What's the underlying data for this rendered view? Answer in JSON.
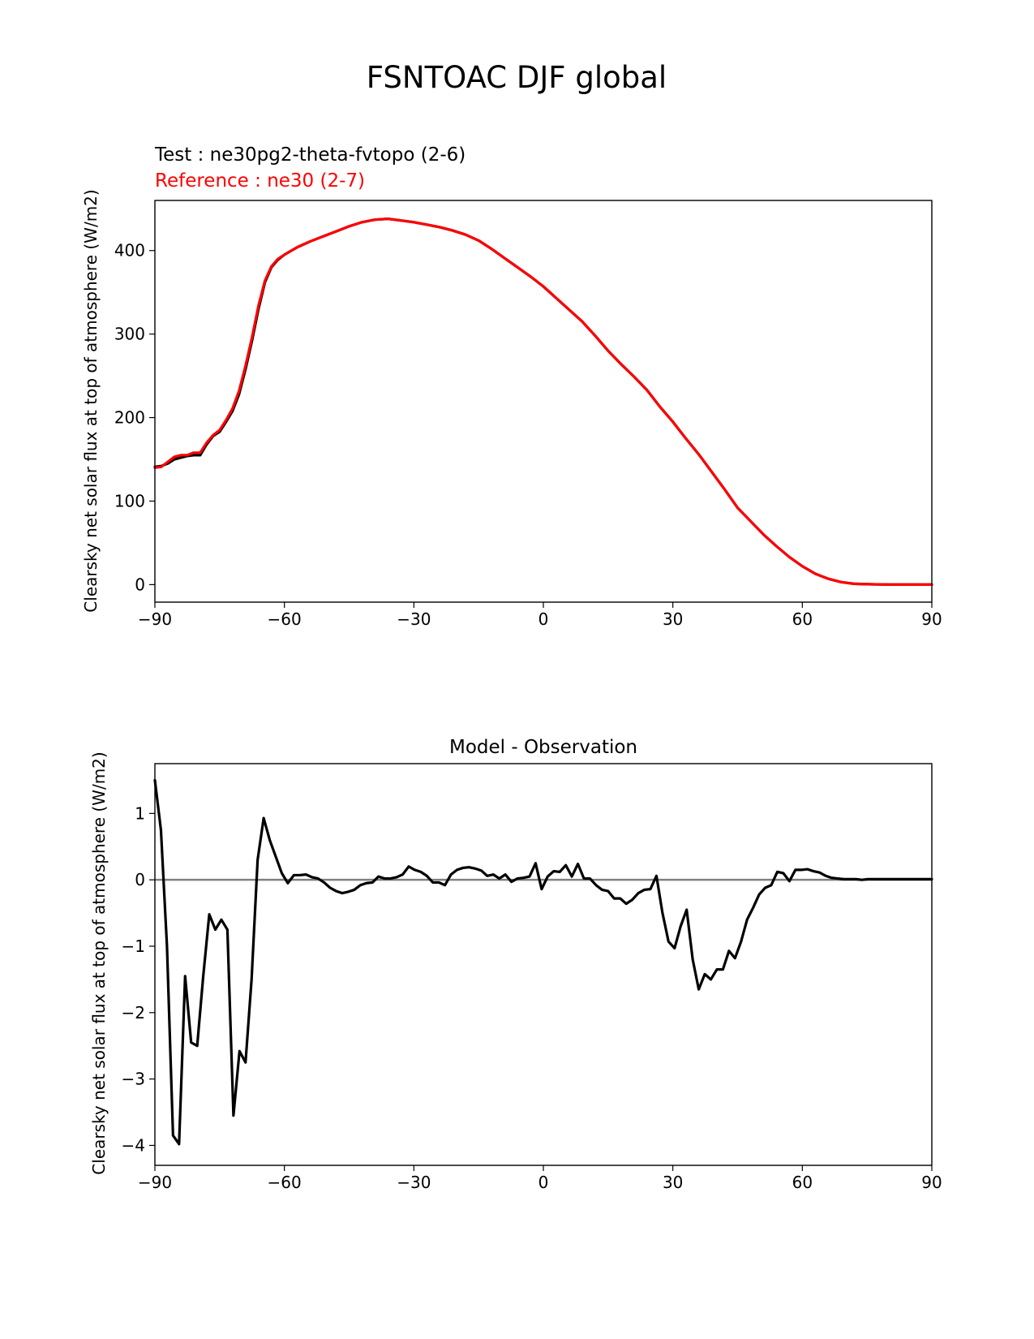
{
  "figure": {
    "title": "FSNTOAC DJF global"
  },
  "chart_data": [
    {
      "type": "line",
      "title_test": "Test : ne30pg2-theta-fvtopo (2-6)",
      "title_reference": "Reference : ne30 (2-7)",
      "xlabel": "",
      "ylabel": "Clearsky net solar flux at top of atmosphere (W/m2)",
      "xlim": [
        -90,
        90
      ],
      "ylim": [
        -21,
        460
      ],
      "xticks": [
        -90,
        -60,
        -30,
        0,
        30,
        60,
        90
      ],
      "xtick_labels": [
        "−90",
        "−60",
        "−30",
        "0",
        "30",
        "60",
        "90"
      ],
      "yticks": [
        0,
        100,
        200,
        300,
        400
      ],
      "ytick_labels": [
        "0",
        "100",
        "200",
        "300",
        "400"
      ],
      "grid": false,
      "series": [
        {
          "name": "Test : ne30pg2-theta-fvtopo (2-6)",
          "color": "#000000",
          "x": [
            -90,
            -88.5,
            -87,
            -85.5,
            -84,
            -82.5,
            -81,
            -79.5,
            -78,
            -76.5,
            -75,
            -73.5,
            -72,
            -70.5,
            -69,
            -67.5,
            -66,
            -64.5,
            -63,
            -61.5,
            -60,
            -57,
            -54,
            -51,
            -48,
            -45,
            -42,
            -39,
            -36,
            -33,
            -30,
            -27,
            -24,
            -21,
            -18,
            -15,
            -12,
            -9,
            -6,
            -3,
            0,
            3,
            6,
            9,
            12,
            15,
            18,
            21,
            24,
            27,
            30,
            33,
            36,
            39,
            42,
            45,
            48,
            51,
            54,
            57,
            60,
            63,
            66,
            69,
            72,
            75,
            78,
            81,
            84,
            87,
            90
          ],
          "y": [
            141,
            142,
            145,
            150,
            152,
            154,
            155,
            155,
            168,
            178,
            183,
            195,
            208,
            228,
            258,
            292,
            330,
            362,
            380,
            389,
            395,
            404,
            411,
            417,
            423,
            429,
            434,
            437,
            438,
            436,
            434,
            431,
            428,
            424,
            419,
            412,
            402,
            391,
            380,
            369,
            357,
            343,
            329,
            315,
            298,
            280,
            264,
            249,
            233,
            213,
            195,
            175,
            156,
            135,
            114,
            92,
            76,
            60,
            46,
            33,
            22,
            13,
            7,
            3,
            1,
            0.5,
            0.2,
            0,
            0,
            0,
            0
          ]
        },
        {
          "name": "Reference : ne30 (2-7)",
          "color": "#ff0000",
          "x": [
            -90,
            -88.5,
            -87,
            -85.5,
            -84,
            -82.5,
            -81,
            -79.5,
            -78,
            -76.5,
            -75,
            -73.5,
            -72,
            -70.5,
            -69,
            -67.5,
            -66,
            -64.5,
            -63,
            -61.5,
            -60,
            -57,
            -54,
            -51,
            -48,
            -45,
            -42,
            -39,
            -36,
            -33,
            -30,
            -27,
            -24,
            -21,
            -18,
            -15,
            -12,
            -9,
            -6,
            -3,
            0,
            3,
            6,
            9,
            12,
            15,
            18,
            21,
            24,
            27,
            30,
            33,
            36,
            39,
            42,
            45,
            48,
            51,
            54,
            57,
            60,
            63,
            66,
            69,
            72,
            75,
            78,
            81,
            84,
            87,
            90
          ],
          "y": [
            140,
            141,
            147,
            153,
            155,
            155,
            158,
            158,
            170,
            179,
            185,
            197,
            211,
            232,
            262,
            296,
            334,
            364,
            381,
            390,
            395,
            404,
            411,
            417,
            423,
            429,
            434,
            437,
            438,
            436,
            434,
            431,
            428,
            424,
            419,
            412,
            402,
            391,
            380,
            369,
            357,
            343,
            329,
            315,
            298,
            280,
            264,
            249,
            233,
            213,
            195,
            175,
            156,
            135,
            114,
            92,
            76,
            60,
            46,
            33,
            22,
            13,
            7,
            3,
            1,
            0.5,
            0.2,
            0,
            0,
            0,
            0
          ]
        }
      ]
    },
    {
      "type": "line",
      "title": "Model - Observation",
      "xlabel": "",
      "ylabel": "Clearsky net solar flux at top of atmosphere (W/m2)",
      "xlim": [
        -90,
        90
      ],
      "ylim": [
        -4.3,
        1.75
      ],
      "xticks": [
        -90,
        -60,
        -30,
        0,
        30,
        60,
        90
      ],
      "xtick_labels": [
        "−90",
        "−60",
        "−30",
        "0",
        "30",
        "60",
        "90"
      ],
      "yticks": [
        -4,
        -3,
        -2,
        -1,
        0,
        1
      ],
      "ytick_labels": [
        "−4",
        "−3",
        "−2",
        "−1",
        "0",
        "1"
      ],
      "grid": false,
      "zero_line": {
        "y": 0,
        "color": "#808080"
      },
      "series": [
        {
          "name": "Model - Observation",
          "color": "#000000",
          "x": [
            -90,
            -88.6,
            -87.2,
            -85.8,
            -84.4,
            -83,
            -81.6,
            -80.2,
            -78.8,
            -77.4,
            -76,
            -74.6,
            -73.2,
            -71.8,
            -70.4,
            -69,
            -67.6,
            -66.2,
            -64.8,
            -63.4,
            -62,
            -60.6,
            -59.2,
            -57.8,
            -56.4,
            -55,
            -53.6,
            -52.2,
            -50.8,
            -49.4,
            -48,
            -46.6,
            -45.2,
            -43.8,
            -42.4,
            -41,
            -39.6,
            -38.2,
            -36.8,
            -35.4,
            -34,
            -32.6,
            -31.2,
            -29.8,
            -28.4,
            -27,
            -25.6,
            -24.2,
            -22.8,
            -21.4,
            -20,
            -18.6,
            -17.2,
            -15.8,
            -14.4,
            -13,
            -11.6,
            -10.2,
            -8.8,
            -7.4,
            -6,
            -4.6,
            -3.2,
            -1.8,
            -0.4,
            1,
            2.4,
            3.8,
            5.2,
            6.6,
            8,
            9.4,
            10.8,
            12.2,
            13.6,
            15,
            16.4,
            17.8,
            19.2,
            20.6,
            22,
            23.4,
            24.8,
            26.2,
            27.6,
            29,
            30.4,
            31.8,
            33.2,
            34.6,
            36,
            37.4,
            38.8,
            40.2,
            41.6,
            43,
            44.4,
            45.8,
            47.2,
            48.6,
            50,
            51.4,
            52.8,
            54.2,
            55.6,
            57,
            58.4,
            59.8,
            61.2,
            62.6,
            64,
            65.4,
            66.8,
            68.2,
            69.6,
            71,
            72.4,
            73.8,
            75.2,
            76.6,
            78,
            79.4,
            80.8,
            82.2,
            83.6,
            85,
            86.4,
            87.8,
            90
          ],
          "y": [
            1.5,
            0.75,
            -1.0,
            -3.85,
            -3.98,
            -1.45,
            -2.45,
            -2.5,
            -1.45,
            -0.52,
            -0.75,
            -0.6,
            -0.75,
            -3.55,
            -2.58,
            -2.75,
            -1.5,
            0.3,
            0.93,
            0.6,
            0.35,
            0.1,
            -0.05,
            0.07,
            0.07,
            0.08,
            0.04,
            0.02,
            -0.04,
            -0.12,
            -0.17,
            -0.2,
            -0.18,
            -0.15,
            -0.08,
            -0.05,
            -0.04,
            0.05,
            0.02,
            0.02,
            0.04,
            0.08,
            0.2,
            0.15,
            0.12,
            0.06,
            -0.04,
            -0.04,
            -0.08,
            0.08,
            0.15,
            0.18,
            0.19,
            0.17,
            0.14,
            0.06,
            0.08,
            0.02,
            0.08,
            -0.03,
            0.02,
            0.03,
            0.05,
            0.25,
            -0.14,
            0.05,
            0.13,
            0.12,
            0.22,
            0.05,
            0.24,
            0.02,
            0.02,
            -0.08,
            -0.15,
            -0.17,
            -0.28,
            -0.28,
            -0.36,
            -0.3,
            -0.2,
            -0.15,
            -0.14,
            0.06,
            -0.5,
            -0.93,
            -1.03,
            -0.7,
            -0.45,
            -1.2,
            -1.65,
            -1.42,
            -1.5,
            -1.35,
            -1.35,
            -1.07,
            -1.18,
            -0.93,
            -0.6,
            -0.42,
            -0.22,
            -0.12,
            -0.08,
            0.12,
            0.1,
            -0.02,
            0.15,
            0.15,
            0.16,
            0.13,
            0.11,
            0.06,
            0.03,
            0.02,
            0.01,
            0.01,
            0.01,
            0,
            0.01,
            0.01,
            0.01,
            0.01,
            0.01,
            0.01,
            0.01,
            0.01,
            0.01,
            0.01,
            0.01
          ]
        }
      ]
    }
  ]
}
